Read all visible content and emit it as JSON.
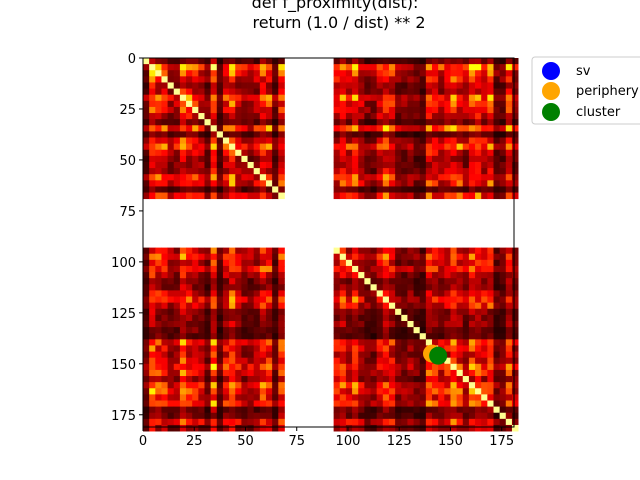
{
  "chart_data": {
    "type": "heatmap",
    "title_lines": [
      "def f_proximity(dist):",
      "    return (1.0 / dist) ** 2"
    ],
    "xlabel": "",
    "ylabel": "",
    "xlim": [
      0,
      181
    ],
    "ylim": [
      181,
      0
    ],
    "x_ticks": [
      0,
      25,
      50,
      75,
      100,
      125,
      150,
      175
    ],
    "y_ticks": [
      0,
      25,
      50,
      75,
      100,
      125,
      150,
      175
    ],
    "colormap": "hot",
    "masked_rows": [
      70,
      91
    ],
    "masked_cols": [
      70,
      91
    ],
    "legend": {
      "placement": "outside-top-right",
      "entries": [
        {
          "label": "sv",
          "color": "#0000ff"
        },
        {
          "label": "periphery",
          "color": "#ffa500"
        },
        {
          "label": "cluster",
          "color": "#008000"
        }
      ]
    },
    "markers": [
      {
        "series": "periphery",
        "x": 141,
        "y": 145
      },
      {
        "series": "cluster",
        "x": 144,
        "y": 146
      }
    ]
  }
}
